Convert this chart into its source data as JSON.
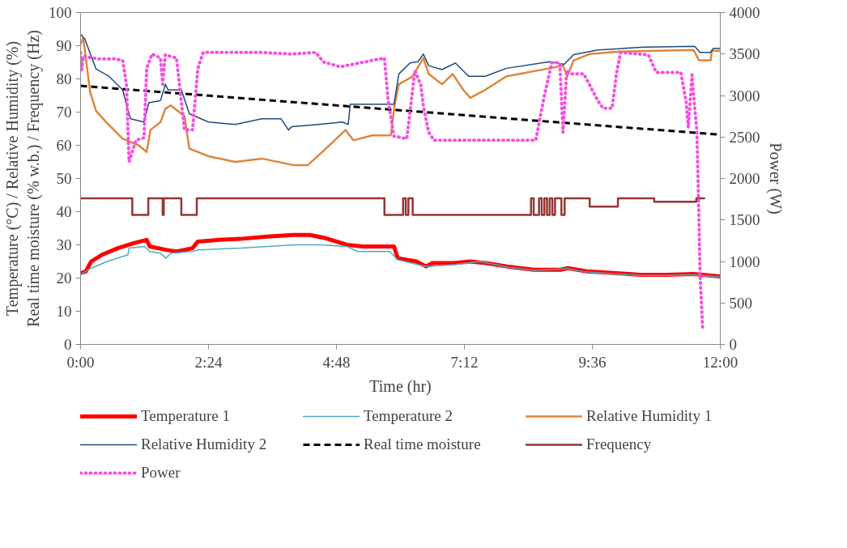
{
  "chart_data": {
    "type": "line",
    "xlabel": "Time (hr)",
    "ylabel": "Temperature (°C) / Relative Humidity (%)\nReal time moisture (% w.b.) / Frequency (Hz)",
    "y2label": "Power (W)",
    "xlim": [
      0,
      12
    ],
    "xticks": [
      {
        "value": 0,
        "label": "0:00"
      },
      {
        "value": 2.4,
        "label": "2:24"
      },
      {
        "value": 4.8,
        "label": "4:48"
      },
      {
        "value": 7.2,
        "label": "7:12"
      },
      {
        "value": 9.6,
        "label": "9:36"
      },
      {
        "value": 12,
        "label": "12:00"
      }
    ],
    "ylim": [
      0,
      100
    ],
    "yticks": [
      0,
      10,
      20,
      30,
      40,
      50,
      60,
      70,
      80,
      90,
      100
    ],
    "y2lim": [
      0,
      4000
    ],
    "y2ticks": [
      0,
      500,
      1000,
      1500,
      2000,
      2500,
      3000,
      3500,
      4000
    ],
    "grid": false,
    "legend": "bottom",
    "marker": "none",
    "series": [
      {
        "name": "Temperature 1",
        "color": "#ff0000",
        "line_style": "solid",
        "x": [
          0,
          0.1,
          0.2,
          0.4,
          0.7,
          1.0,
          1.24,
          1.3,
          1.6,
          1.8,
          2.1,
          2.2,
          2.6,
          3.0,
          3.5,
          4.0,
          4.3,
          4.6,
          5.0,
          5.3,
          5.88,
          5.95,
          6.3,
          6.48,
          6.6,
          7.0,
          7.3,
          7.6,
          8.0,
          8.5,
          9.0,
          9.14,
          9.5,
          10.0,
          10.5,
          11.0,
          11.5,
          12.0
        ],
        "values": [
          21.5,
          22,
          25,
          27,
          29,
          30.5,
          31.5,
          29.5,
          28.5,
          28,
          29,
          31,
          31.5,
          31.8,
          32.5,
          33,
          33,
          32,
          30,
          29.5,
          29.5,
          26,
          25,
          23.5,
          24.5,
          24.5,
          25,
          24.5,
          23.5,
          22.5,
          22.5,
          23,
          22,
          21.5,
          21,
          21,
          21.2,
          20.5
        ]
      },
      {
        "name": "Temperature 2",
        "color": "#4bacc6",
        "line_style": "solid",
        "x": [
          0,
          0.2,
          0.5,
          0.89,
          0.91,
          1.2,
          1.3,
          1.5,
          1.6,
          1.7,
          2.1,
          2.2,
          3.0,
          3.5,
          4.0,
          4.5,
          5.0,
          5.2,
          5.8,
          5.95,
          6.48,
          7.0,
          7.5,
          8.0,
          8.5,
          9.14,
          9.5,
          10.0,
          10.5,
          11.0,
          11.5,
          12.0
        ],
        "values": [
          21,
          23,
          25,
          27,
          29,
          29.5,
          28,
          27.5,
          26,
          27.5,
          28,
          28.5,
          29,
          29.5,
          30,
          30,
          29.5,
          28,
          28,
          25.5,
          23.5,
          24,
          25,
          23.3,
          22.3,
          22.8,
          21.8,
          21.3,
          20.8,
          20.8,
          21,
          20.3
        ]
      },
      {
        "name": "Relative Humidity 1",
        "color": "#e0853a",
        "line_style": "solid",
        "x": [
          0,
          0.05,
          0.18,
          0.29,
          0.48,
          0.79,
          1.09,
          1.24,
          1.31,
          1.5,
          1.59,
          1.69,
          1.95,
          2.04,
          2.4,
          2.9,
          3.4,
          4.0,
          4.26,
          4.56,
          4.97,
          5.12,
          5.47,
          5.82,
          5.89,
          5.97,
          6.23,
          6.43,
          6.53,
          6.78,
          6.98,
          7.18,
          7.31,
          7.59,
          7.99,
          8.8,
          9.05,
          9.13,
          9.25,
          9.55,
          10.05,
          10.8,
          11.5,
          11.6,
          11.82,
          11.84,
          12.0
        ],
        "values": [
          90.4,
          92.4,
          76,
          70.4,
          67,
          62,
          60,
          58,
          64.6,
          67,
          71,
          72,
          68.8,
          59,
          56.7,
          55,
          56,
          54,
          54,
          58.4,
          64.6,
          61.5,
          63,
          63,
          72,
          78.4,
          80.8,
          86.3,
          81.5,
          78.4,
          81.5,
          76.7,
          74.3,
          76.7,
          80.8,
          83.2,
          84,
          80.8,
          85.6,
          87.5,
          88.2,
          88.5,
          88.7,
          85.6,
          85.6,
          88.5,
          88.5
        ]
      },
      {
        "name": "Relative Humidity 2",
        "color": "#1f497d",
        "line_style": "solid",
        "x": [
          0,
          0.08,
          0.29,
          0.53,
          0.79,
          0.89,
          0.94,
          1.19,
          1.28,
          1.5,
          1.59,
          1.64,
          1.89,
          2.04,
          2.4,
          2.9,
          3.4,
          3.76,
          3.9,
          3.96,
          4.46,
          4.91,
          5.02,
          5.06,
          5.47,
          5.88,
          5.97,
          6.18,
          6.33,
          6.43,
          6.53,
          6.78,
          7.03,
          7.28,
          7.59,
          7.99,
          8.8,
          9.07,
          9.25,
          9.7,
          10.56,
          11.52,
          11.62,
          11.82,
          11.87,
          12.0
        ],
        "values": [
          93.5,
          92,
          83,
          80.8,
          76.7,
          70.4,
          68,
          67,
          72.8,
          73.5,
          78.4,
          76.7,
          76.7,
          69.5,
          67,
          66.3,
          68,
          68,
          64.6,
          65.6,
          66.3,
          67,
          66.3,
          72.4,
          72.4,
          72.4,
          81.5,
          84.8,
          85.2,
          87.5,
          84,
          82.8,
          84.8,
          80.8,
          80.8,
          83.2,
          85.2,
          84.4,
          87.3,
          88.7,
          89.6,
          89.8,
          88,
          88,
          89.2,
          89.2
        ]
      },
      {
        "name": "Real time moisture",
        "color": "#000000",
        "line_style": "dashed",
        "x": [
          0,
          12
        ],
        "values": [
          77.9,
          63.2
        ]
      },
      {
        "name": "Frequency",
        "color": "#943634",
        "line_style": "solid",
        "x": [
          0,
          0.97,
          0.97,
          1.27,
          1.27,
          1.54,
          1.54,
          1.56,
          1.56,
          1.89,
          1.89,
          2.18,
          2.18,
          5.7,
          5.7,
          6.05,
          6.05,
          6.1,
          6.1,
          6.15,
          6.15,
          6.23,
          6.23,
          8.45,
          8.45,
          8.5,
          8.5,
          8.6,
          8.6,
          8.65,
          8.65,
          8.7,
          8.7,
          8.75,
          8.75,
          8.8,
          8.8,
          8.85,
          8.85,
          8.9,
          8.9,
          9.02,
          9.02,
          9.08,
          9.08,
          9.55,
          9.55,
          10.08,
          10.08,
          10.76,
          10.76,
          11.55,
          11.55,
          11.7
        ],
        "values": [
          44,
          44,
          39,
          39,
          44,
          44,
          39,
          39,
          44,
          44,
          39,
          39,
          44,
          44,
          39,
          39,
          44,
          44,
          39,
          39,
          44,
          44,
          39,
          39,
          44,
          44,
          39,
          39,
          44,
          44,
          39,
          39,
          44,
          44,
          39,
          39,
          44,
          44,
          39,
          39,
          44,
          44,
          39,
          39,
          44,
          44,
          41.5,
          41.5,
          44,
          44,
          43,
          43,
          44,
          44
        ]
      },
      {
        "name": "Power",
        "color": "#f550e0",
        "line_style": "dotted",
        "axis": "y2",
        "x": [
          0,
          0.02,
          0.05,
          0.33,
          0.63,
          0.79,
          0.86,
          0.91,
          1.04,
          1.19,
          1.24,
          1.34,
          1.5,
          1.54,
          1.59,
          1.8,
          1.87,
          1.95,
          2.1,
          2.2,
          2.3,
          3.4,
          3.96,
          4.41,
          4.56,
          4.87,
          5.47,
          5.7,
          5.77,
          5.88,
          6.12,
          6.27,
          6.38,
          6.43,
          6.53,
          6.63,
          7.99,
          8.54,
          8.69,
          8.84,
          8.99,
          9.05,
          9.12,
          9.2,
          9.44,
          9.7,
          9.8,
          9.97,
          10.05,
          10.13,
          10.65,
          10.8,
          11.26,
          11.36,
          11.4,
          11.47,
          11.51,
          11.56,
          11.59,
          11.62,
          11.67
        ],
        "values": [
          3519,
          3298,
          3471,
          3442,
          3442,
          3423,
          3135,
          2202,
          2462,
          2490,
          3327,
          3500,
          3452,
          3135,
          3490,
          3452,
          3038,
          2586,
          2586,
          3327,
          3519,
          3519,
          3500,
          3519,
          3404,
          3346,
          3423,
          3452,
          2942,
          2509,
          2480,
          3298,
          3135,
          2876,
          2557,
          2462,
          2462,
          2462,
          2971,
          3394,
          3394,
          2557,
          3300,
          3260,
          3260,
          2942,
          2846,
          2846,
          3250,
          3519,
          3490,
          3279,
          3279,
          2923,
          2615,
          3250,
          2923,
          2586,
          1817,
          855,
          182
        ]
      }
    ]
  }
}
